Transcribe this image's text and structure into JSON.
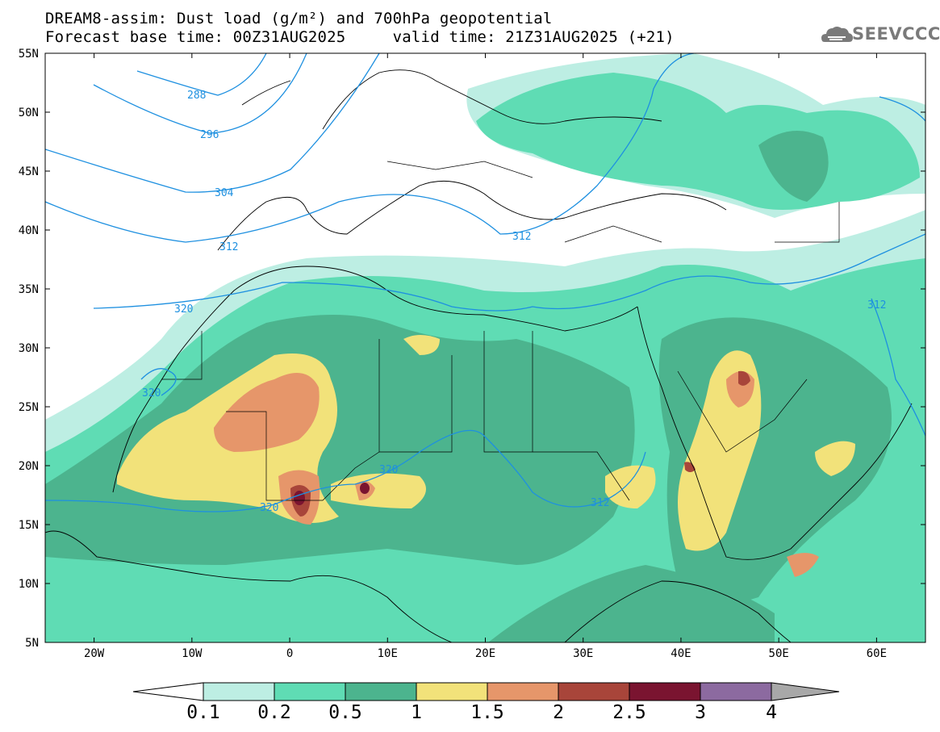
{
  "title": {
    "line1": "DREAM8-assim: Dust load (g/m²) and 700hPa geopotential",
    "line2": "Forecast base time: 00Z31AUG2025     valid time: 21Z31AUG2025 (+21)"
  },
  "logo": {
    "text": "SEEVCCC",
    "icon": "cloud-logo-icon"
  },
  "axes": {
    "lat_labels": [
      "55N",
      "50N",
      "45N",
      "40N",
      "35N",
      "30N",
      "25N",
      "20N",
      "15N",
      "10N",
      "5N"
    ],
    "lon_labels": [
      "20W",
      "10W",
      "0",
      "10E",
      "20E",
      "30E",
      "40E",
      "50E",
      "60E"
    ],
    "lat_range": [
      5,
      55
    ],
    "lon_range": [
      -25,
      65
    ]
  },
  "contours": {
    "labels": [
      "288",
      "296",
      "304",
      "312",
      "320",
      "320",
      "320",
      "320",
      "312",
      "312",
      "312"
    ],
    "color": "#1e90e0"
  },
  "colorbar": {
    "labels": [
      "0.1",
      "0.2",
      "0.5",
      "1",
      "1.5",
      "2",
      "2.5",
      "3",
      "4"
    ],
    "colors": [
      "#bdeee3",
      "#5fdcb4",
      "#4cb48e",
      "#f2e27a",
      "#e6966a",
      "#a8453a",
      "#7a1430",
      "#8c6aa0"
    ],
    "under_color": "#ffffff",
    "over_color": "#a8a8a8"
  }
}
